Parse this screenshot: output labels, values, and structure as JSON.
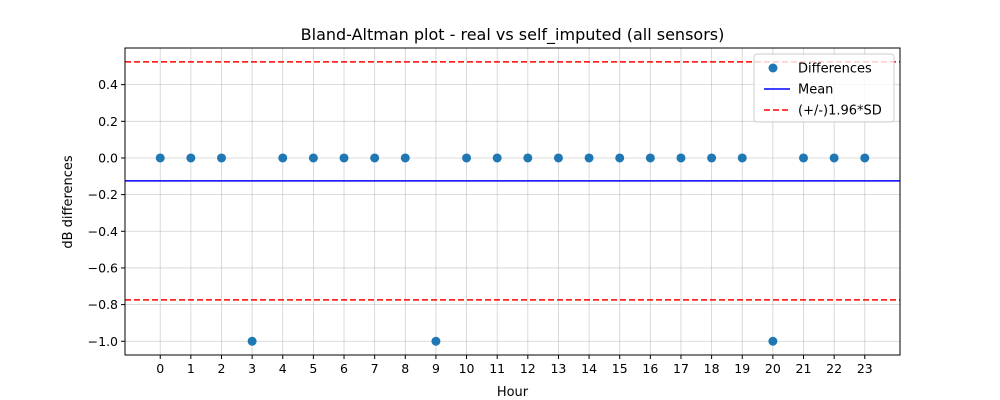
{
  "chart_data": {
    "type": "scatter",
    "title": "Bland-Altman plot - real vs self_imputed (all sensors)",
    "xlabel": "Hour",
    "ylabel": "dB differences",
    "x": [
      0,
      1,
      2,
      3,
      4,
      5,
      6,
      7,
      8,
      9,
      10,
      11,
      12,
      13,
      14,
      15,
      16,
      17,
      18,
      19,
      20,
      21,
      22,
      23
    ],
    "series": [
      {
        "name": "Differences",
        "values": [
          0,
          0,
          0,
          -1,
          0,
          0,
          0,
          0,
          0,
          -1,
          0,
          0,
          0,
          0,
          0,
          0,
          0,
          0,
          0,
          0,
          -1,
          0,
          0,
          0
        ],
        "color": "#1f77b4"
      }
    ],
    "reference_lines": [
      {
        "name": "Mean",
        "value": -0.125,
        "color": "#0000ff",
        "style": "solid"
      },
      {
        "name": "(+/-)1.96*SD",
        "value": 0.5241,
        "color": "#ff0000",
        "style": "dashed"
      },
      {
        "name": "(+/-)1.96*SD upper-lower",
        "value": -0.7741,
        "color": "#ff0000",
        "style": "dashed",
        "in_legend": false
      }
    ],
    "xlim": [
      -1.15,
      24.15
    ],
    "ylim": [
      -1.075,
      0.6
    ],
    "xticks": [
      "0",
      "1",
      "2",
      "3",
      "4",
      "5",
      "6",
      "7",
      "8",
      "9",
      "10",
      "11",
      "12",
      "13",
      "14",
      "15",
      "16",
      "17",
      "18",
      "19",
      "20",
      "21",
      "22",
      "23"
    ],
    "yticks": [
      {
        "value": 0.4,
        "label": "0.4"
      },
      {
        "value": 0.2,
        "label": "0.2"
      },
      {
        "value": 0.0,
        "label": "0.0"
      },
      {
        "value": -0.2,
        "label": "−0.2"
      },
      {
        "value": -0.4,
        "label": "−0.4"
      },
      {
        "value": -0.6,
        "label": "−0.6"
      },
      {
        "value": -0.8,
        "label": "−0.8"
      },
      {
        "value": -1.0,
        "label": "−1.0"
      }
    ],
    "grid": true,
    "legend": {
      "position": "top-right",
      "entries": [
        {
          "label": "Differences",
          "marker": "circle",
          "color": "#1f77b4"
        },
        {
          "label": "Mean",
          "marker": "line",
          "color": "#0000ff"
        },
        {
          "label": "(+/-)1.96*SD",
          "marker": "dashed-line",
          "color": "#ff0000"
        }
      ]
    }
  }
}
